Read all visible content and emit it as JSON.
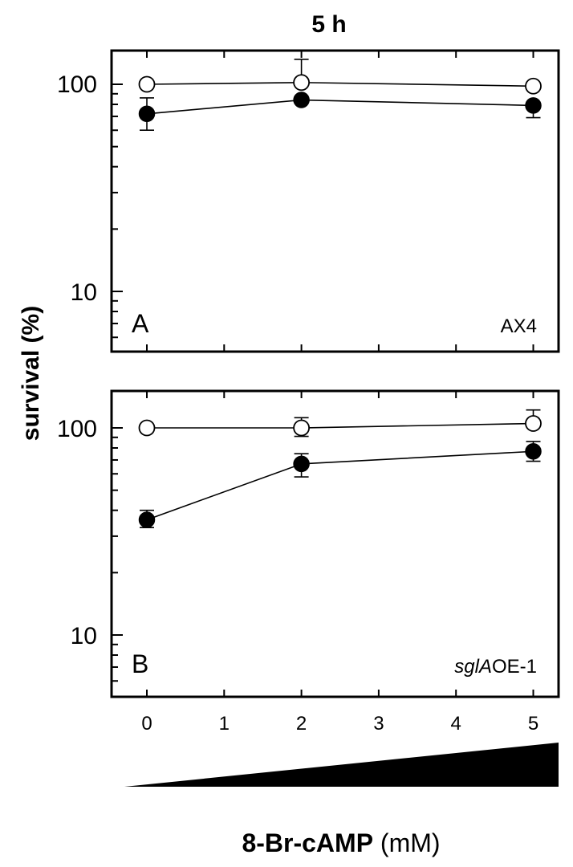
{
  "figure": {
    "title": "5 h",
    "ylabel": "survival (%)",
    "xlabel_bold": "8-Br-cAMP",
    "xlabel_unit": " (mM)",
    "xticks": [
      "0",
      "1",
      "2",
      "3",
      "4",
      "5"
    ],
    "yticks": [
      "100",
      "10"
    ]
  },
  "chart_data": [
    {
      "type": "line",
      "panel": "A",
      "annotation": "AX4",
      "x": [
        0,
        2,
        5
      ],
      "xlim": [
        -0.35,
        5.35
      ],
      "ylim": [
        5.5,
        160
      ],
      "yscale": "log",
      "series": [
        {
          "marker": "open-circle",
          "values": [
            100,
            102,
            98
          ],
          "err_up": [
            0,
            30,
            0
          ],
          "err_down": [
            0,
            0,
            0
          ]
        },
        {
          "marker": "filled-circle",
          "values": [
            72,
            84,
            79
          ],
          "err_up": [
            14,
            0,
            0
          ],
          "err_down": [
            12,
            0,
            10
          ]
        }
      ]
    },
    {
      "type": "line",
      "panel": "B",
      "annotation": "sglAOE-1",
      "x": [
        0,
        2,
        5
      ],
      "xlim": [
        -0.35,
        5.35
      ],
      "ylim": [
        5.5,
        160
      ],
      "yscale": "log",
      "series": [
        {
          "marker": "open-circle",
          "values": [
            100,
            100,
            105
          ],
          "err_up": [
            0,
            12,
            17
          ],
          "err_down": [
            0,
            9,
            0
          ]
        },
        {
          "marker": "filled-circle",
          "values": [
            36,
            67,
            77
          ],
          "err_up": [
            4,
            8,
            9
          ],
          "err_down": [
            3,
            9,
            8
          ]
        }
      ]
    }
  ]
}
